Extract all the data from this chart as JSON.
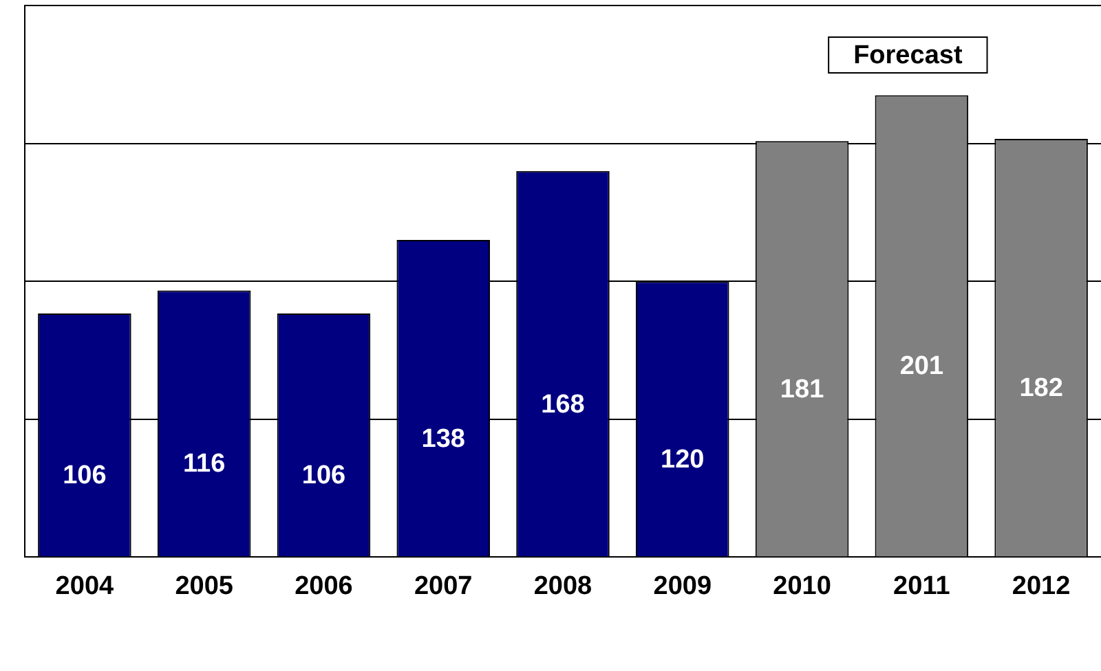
{
  "chart_data": {
    "type": "bar",
    "categories": [
      "2004",
      "2005",
      "2006",
      "2007",
      "2008",
      "2009",
      "2010",
      "2011",
      "2012"
    ],
    "values": [
      106,
      116,
      106,
      138,
      168,
      120,
      181,
      201,
      182
    ],
    "colors": [
      "#000080",
      "#000080",
      "#000080",
      "#000080",
      "#000080",
      "#000080",
      "#808080",
      "#808080",
      "#808080"
    ],
    "ylim": [
      0,
      240
    ],
    "grid": "y",
    "tick_labels": "x",
    "data_labels": true,
    "legend": false,
    "annotations": [
      "Forecast"
    ]
  }
}
